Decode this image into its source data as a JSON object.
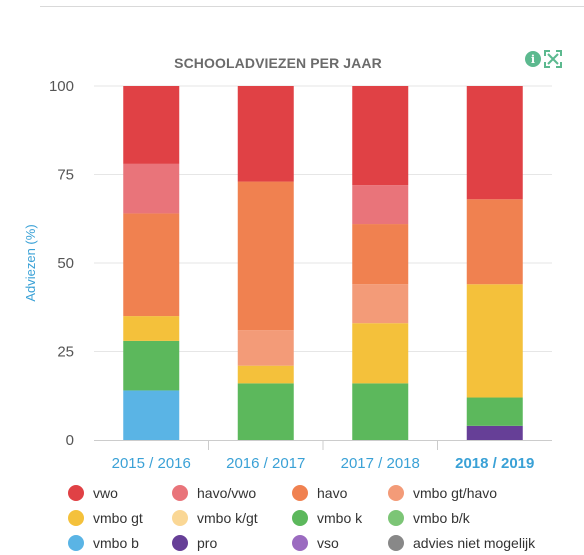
{
  "header": {
    "title": "SCHOOLADVIEZEN PER JAAR",
    "info_icon_name": "info-icon",
    "expand_icon_name": "expand-icon"
  },
  "colors": {
    "accent": "#3aa1d6",
    "axis_text": "#555555",
    "grid": "#e6e6e6",
    "title": "#6b6b6b",
    "info_icon": "#5cb98f"
  },
  "chart_data": {
    "type": "bar",
    "stacked": true,
    "title": "SCHOOLADVIEZEN PER JAAR",
    "xlabel": "",
    "ylabel": "Adviezen (%)",
    "ylim": [
      0,
      100
    ],
    "yticks": [
      0,
      25,
      50,
      75,
      100
    ],
    "grid": true,
    "legend_position": "bottom",
    "categories": [
      "2015 / 2016",
      "2016 / 2017",
      "2017 / 2018",
      "2018 / 2019"
    ],
    "selected_category": "2018 / 2019",
    "series": [
      {
        "name": "vwo",
        "color": "#e04145",
        "values": [
          22,
          27,
          28,
          32
        ]
      },
      {
        "name": "havo/vwo",
        "color": "#e9747a",
        "values": [
          14,
          0,
          11,
          0
        ]
      },
      {
        "name": "havo",
        "color": "#f08150",
        "values": [
          29,
          42,
          17,
          24
        ]
      },
      {
        "name": "vmbo gt/havo",
        "color": "#f39b78",
        "values": [
          0,
          10,
          11,
          0
        ]
      },
      {
        "name": "vmbo gt",
        "color": "#f4c13b",
        "values": [
          7,
          5,
          17,
          32
        ]
      },
      {
        "name": "vmbo k/gt",
        "color": "#fad795",
        "values": [
          0,
          0,
          0,
          0
        ]
      },
      {
        "name": "vmbo k",
        "color": "#5cb85c",
        "values": [
          14,
          16,
          16,
          8
        ]
      },
      {
        "name": "vmbo b/k",
        "color": "#7cc576",
        "values": [
          0,
          0,
          0,
          0
        ]
      },
      {
        "name": "vmbo b",
        "color": "#5ab4e5",
        "values": [
          14,
          0,
          0,
          0
        ]
      },
      {
        "name": "pro",
        "color": "#663f97",
        "values": [
          0,
          0,
          0,
          4
        ]
      },
      {
        "name": "vso",
        "color": "#9b6bc0",
        "values": [
          0,
          0,
          0,
          0
        ]
      },
      {
        "name": "advies niet mogelijk",
        "color": "#888888",
        "values": [
          0,
          0,
          0,
          0
        ]
      }
    ]
  },
  "legend": {
    "rows": [
      [
        {
          "label": "vwo",
          "color": "#e04145"
        },
        {
          "label": "havo/vwo",
          "color": "#e9747a"
        },
        {
          "label": "havo",
          "color": "#f08150"
        },
        {
          "label": "vmbo gt/havo",
          "color": "#f39b78"
        }
      ],
      [
        {
          "label": "vmbo gt",
          "color": "#f4c13b"
        },
        {
          "label": "vmbo k/gt",
          "color": "#fad795"
        },
        {
          "label": "vmbo k",
          "color": "#5cb85c"
        },
        {
          "label": "vmbo b/k",
          "color": "#7cc576"
        }
      ],
      [
        {
          "label": "vmbo b",
          "color": "#5ab4e5"
        },
        {
          "label": "pro",
          "color": "#663f97"
        },
        {
          "label": "vso",
          "color": "#9b6bc0"
        },
        {
          "label": "advies niet mogelijk",
          "color": "#888888"
        }
      ]
    ]
  }
}
